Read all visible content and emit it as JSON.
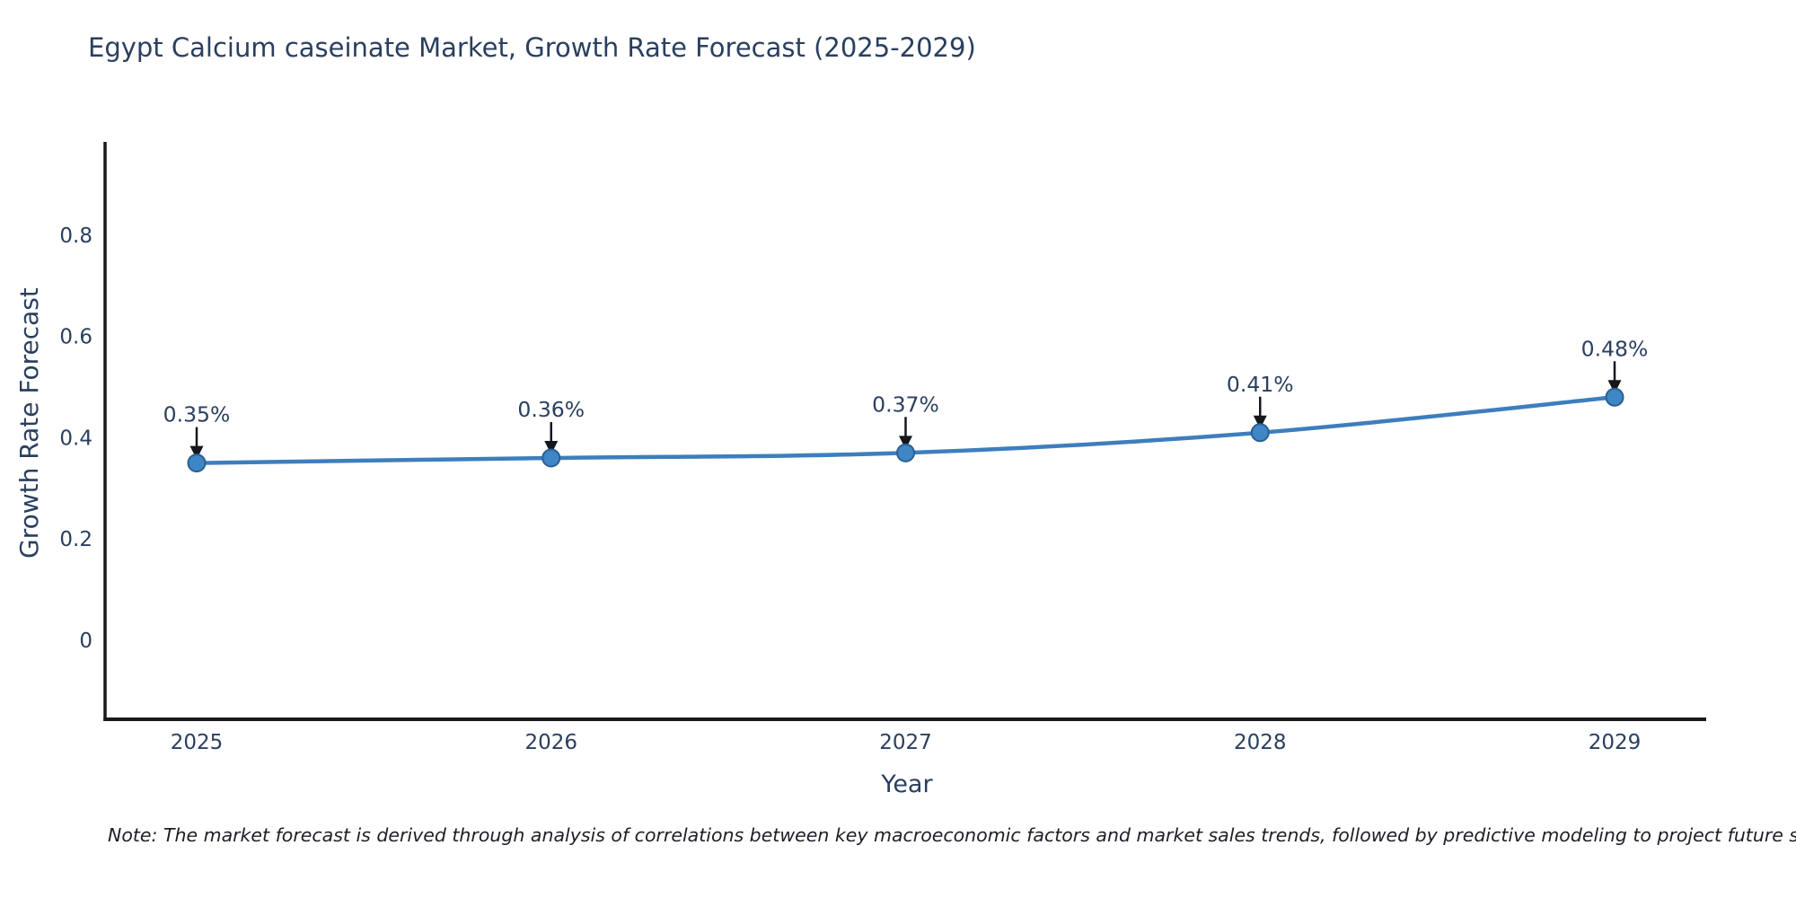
{
  "chart_data": {
    "type": "line",
    "title": "Egypt Calcium caseinate Market, Growth Rate Forecast (2025-2029)",
    "xlabel": "Year",
    "ylabel": "Growth Rate Forecast",
    "categories": [
      "2025",
      "2026",
      "2027",
      "2028",
      "2029"
    ],
    "series": [
      {
        "name": "Growth Rate Forecast",
        "values": [
          0.35,
          0.36,
          0.37,
          0.41,
          0.48
        ]
      }
    ],
    "point_labels": [
      "0.35%",
      "0.36%",
      "0.37%",
      "0.41%",
      "0.48%"
    ],
    "y_ticks": [
      0,
      0.2,
      0.4,
      0.6,
      0.8
    ],
    "y_tick_labels": [
      "0",
      "0.2",
      "0.4",
      "0.6",
      "0.8"
    ],
    "ylim": [
      -0.156,
      0.984
    ],
    "grid": false,
    "legend_position": "none",
    "colors": {
      "line": "#3d7ebd",
      "marker_fill": "#3f86c6",
      "marker_edge": "#2b5f91",
      "axis": "#1a1a1a",
      "text": "#2a3f5f",
      "annotation_arrow": "#14171c"
    }
  },
  "note": {
    "text": "Note: The market forecast is derived through analysis of correlations between key macroeconomic factors and market sales trends, followed by predictive modeling to project future sales"
  }
}
